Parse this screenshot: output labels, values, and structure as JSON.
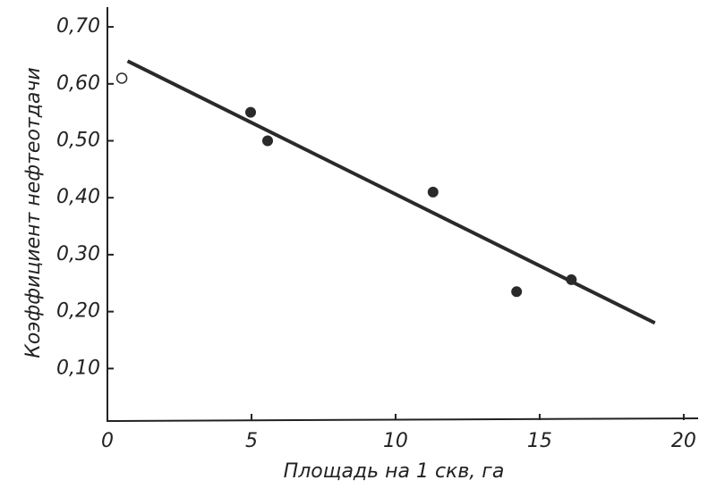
{
  "chart_data": {
    "type": "scatter",
    "x_label": "Площадь на 1 скв, га",
    "y_label": "Коэффициент нефтеотдачи",
    "series": [
      {
        "x": [
          4.97,
          5.56,
          11.3,
          14.2,
          16.1
        ],
        "values": [
          0.55,
          0.5,
          0.41,
          0.235,
          0.256
        ],
        "color": "#2a2a2a",
        "marker": "filled"
      },
      {
        "x": [
          0.5
        ],
        "values": [
          0.61
        ],
        "color": "#2a2a2a",
        "marker": "open"
      }
    ],
    "trend_line": {
      "x": [
        0.7,
        19.0
      ],
      "values": [
        0.64,
        0.18
      ],
      "color": "#2a2a2a"
    },
    "xlim": [
      0,
      20.5
    ],
    "ylim": [
      0,
      0.73
    ],
    "xticks": [
      0,
      5,
      10,
      15,
      20
    ],
    "yticks": [
      {
        "value": 0.1,
        "label": "0,10"
      },
      {
        "value": 0.2,
        "label": "0,20"
      },
      {
        "value": 0.3,
        "label": "0,30"
      },
      {
        "value": 0.4,
        "label": "0,40"
      },
      {
        "value": 0.5,
        "label": "0,50"
      },
      {
        "value": 0.6,
        "label": "0,60"
      },
      {
        "value": 0.7,
        "label": "0,70"
      }
    ]
  }
}
